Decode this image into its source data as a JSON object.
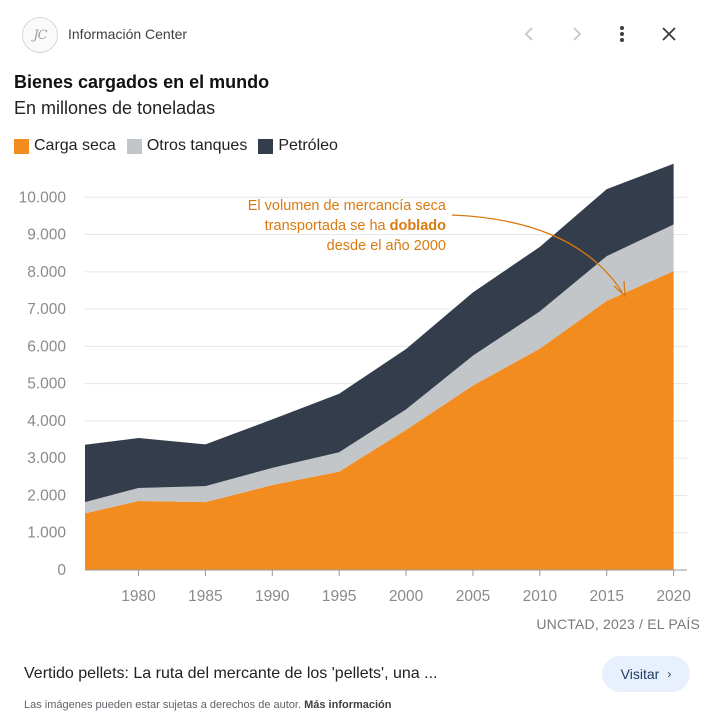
{
  "header": {
    "logo_text": "JC",
    "source_name": "Información Center",
    "icons": [
      "chevron-left-icon",
      "chevron-right-icon",
      "more-vert-icon",
      "close-icon"
    ]
  },
  "chart_data": {
    "type": "area",
    "stacked": true,
    "title": "Bienes cargados en el mundo",
    "subtitle": "En millones de toneladas",
    "x": [
      1976,
      1980,
      1985,
      1990,
      1995,
      2000,
      2005,
      2010,
      2015,
      2020
    ],
    "series": [
      {
        "name": "Carga seca",
        "color": "#f28c1e",
        "values": [
          1520,
          1850,
          1820,
          2280,
          2640,
          3760,
          4950,
          5940,
          7220,
          8020
        ]
      },
      {
        "name": "Otros tanques",
        "color": "#c3c6c9",
        "values": [
          300,
          350,
          430,
          460,
          520,
          550,
          800,
          1000,
          1200,
          1250
        ]
      },
      {
        "name": "Petróleo",
        "color": "#343d4c",
        "values": [
          1540,
          1340,
          1120,
          1300,
          1570,
          1620,
          1700,
          1730,
          1800,
          1630
        ]
      }
    ],
    "xticks": [
      1980,
      1985,
      1990,
      1995,
      2000,
      2005,
      2010,
      2015,
      2020
    ],
    "yticks": [
      0,
      1000,
      2000,
      3000,
      4000,
      5000,
      6000,
      7000,
      8000,
      9000,
      10000
    ],
    "ytick_labels": [
      "0",
      "1.000",
      "2.000",
      "3.000",
      "4.000",
      "5.000",
      "6.000",
      "7.000",
      "8.000",
      "9.000",
      "10.000"
    ],
    "ylim": [
      0,
      11000
    ],
    "xlim": [
      1976,
      2021
    ],
    "grid": true,
    "legend_position": "top-left",
    "annotation": {
      "line1": "El volumen de mercancía seca",
      "line2_pre": "transportada se ha ",
      "line2_bold": "doblado",
      "line3": "desde el año 2000",
      "color": "#d97a10"
    },
    "credit": "UNCTAD, 2023 / EL PAÍS"
  },
  "footer": {
    "caption": "Vertido pellets: La ruta del mercante de los 'pellets', una ...",
    "visit_label": "Visitar",
    "rights_text": "Las imágenes pueden estar sujetas a derechos de autor.",
    "rights_link": "Más información"
  }
}
